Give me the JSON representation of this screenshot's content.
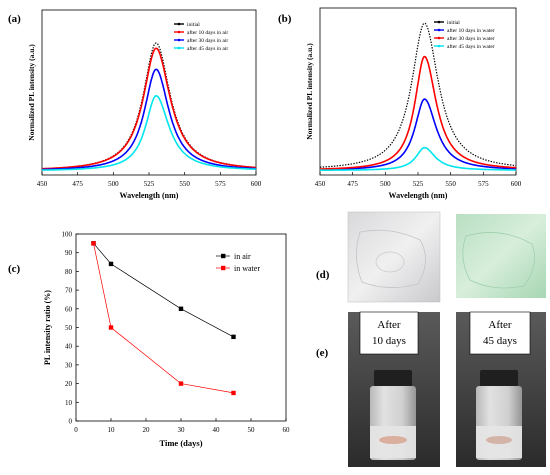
{
  "panel_labels": [
    "(a)",
    "(b)",
    "(c)",
    "(d)",
    "(e)"
  ],
  "photo_captions": {
    "left": [
      "After",
      "10 days"
    ],
    "right": [
      "After",
      "45 days"
    ]
  },
  "chart_data": [
    {
      "panel": "(a)",
      "type": "line",
      "title": "",
      "xlabel": "Wavelength (nm)",
      "ylabel": "Normalized PL intensity (a.u.)",
      "xlim": [
        450,
        600
      ],
      "x_ticks": [
        "450",
        "475",
        "500",
        "525",
        "550",
        "575",
        "600"
      ],
      "y_ticks_shown": false,
      "legend_position": "top-right",
      "peak_center_nm": 530,
      "baseline_intensity": 0.03,
      "ylim": [
        0,
        1.25
      ],
      "series": [
        {
          "name": "initial",
          "color": "#000000",
          "peak": 1.0,
          "hwhm_left": 11,
          "hwhm_right": 12,
          "marker": "dots"
        },
        {
          "name": "after 10 days in air",
          "color": "#ff0000",
          "peak": 0.96,
          "hwhm_left": 11,
          "hwhm_right": 12
        },
        {
          "name": "after 30 days in air",
          "color": "#0000ff",
          "peak": 0.8,
          "hwhm_left": 10,
          "hwhm_right": 11
        },
        {
          "name": "after 45 days in air",
          "color": "#00e5ee",
          "peak": 0.6,
          "hwhm_left": 9,
          "hwhm_right": 11
        }
      ]
    },
    {
      "panel": "(b)",
      "type": "line",
      "title": "",
      "xlabel": "Wavelength (nm)",
      "ylabel": "Normalized PL intensity (a.u.)",
      "xlim": [
        450,
        600
      ],
      "x_ticks": [
        "450",
        "475",
        "500",
        "525",
        "550",
        "575",
        "600"
      ],
      "y_ticks_shown": false,
      "legend_position": "top-right",
      "peak_center_nm": 530,
      "baseline_intensity": 0.03,
      "ylim": [
        0,
        1.1
      ],
      "series": [
        {
          "name": "initial",
          "color": "#000000",
          "peak": 1.0,
          "hwhm_left": 12,
          "hwhm_right": 13,
          "marker": "dots"
        },
        {
          "name": "after 10 days in water",
          "color": "#0000ff",
          "peak": 0.5,
          "hwhm_left": 9,
          "hwhm_right": 11
        },
        {
          "name": "after 30 days in water",
          "color": "#ff0000",
          "peak": 0.78,
          "hwhm_left": 9,
          "hwhm_right": 11
        },
        {
          "name": "after 45 days in water",
          "color": "#00e5ee",
          "peak": 0.18,
          "hwhm_left": 8,
          "hwhm_right": 10
        }
      ]
    },
    {
      "panel": "(c)",
      "type": "line",
      "title": "",
      "xlabel": "Time (days)",
      "ylabel": "PL intensity ratio (%)",
      "xlim": [
        0,
        60
      ],
      "ylim": [
        0,
        100
      ],
      "x_ticks": [
        0,
        10,
        20,
        30,
        40,
        50,
        60
      ],
      "y_ticks": [
        0,
        10,
        20,
        30,
        40,
        50,
        60,
        70,
        80,
        90,
        100
      ],
      "legend_position": "top-right",
      "series": [
        {
          "name": "in air",
          "color": "#000000",
          "x": [
            5,
            10,
            30,
            45
          ],
          "y": [
            95,
            84,
            60,
            45
          ]
        },
        {
          "name": "in water",
          "color": "#ff0000",
          "x": [
            5,
            10,
            30,
            45
          ],
          "y": [
            95,
            50,
            20,
            15
          ]
        }
      ]
    }
  ]
}
